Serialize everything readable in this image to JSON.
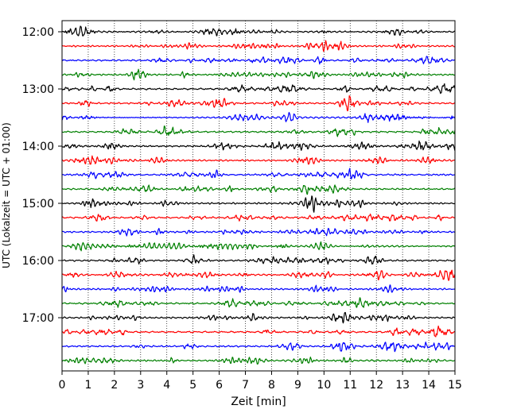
{
  "chart_data": {
    "type": "line",
    "title": "",
    "xlabel": "Zeit  [min]",
    "ylabel": "UTC (Lokalzeit = UTC + 01:00)",
    "xlim": [
      0,
      15
    ],
    "x_ticks": [
      0,
      1,
      2,
      3,
      4,
      5,
      6,
      7,
      8,
      9,
      10,
      11,
      12,
      13,
      14,
      15
    ],
    "x_tick_labels": [
      "0",
      "1",
      "2",
      "3",
      "4",
      "5",
      "6",
      "7",
      "8",
      "9",
      "10",
      "11",
      "12",
      "13",
      "14",
      "15"
    ],
    "y_tick_labels": [
      "12:00",
      "13:00",
      "14:00",
      "15:00",
      "16:00",
      "17:00"
    ],
    "grid": "vertical dotted",
    "trace_interval_minutes": 15,
    "trace_colors": [
      "#000000",
      "#ff0000",
      "#0000ff",
      "#008000"
    ],
    "series": [
      {
        "start": "12:00"
      },
      {
        "start": "12:15"
      },
      {
        "start": "12:30"
      },
      {
        "start": "12:45"
      },
      {
        "start": "13:00"
      },
      {
        "start": "13:15"
      },
      {
        "start": "13:30"
      },
      {
        "start": "13:45"
      },
      {
        "start": "14:00"
      },
      {
        "start": "14:15"
      },
      {
        "start": "14:30"
      },
      {
        "start": "14:45"
      },
      {
        "start": "15:00"
      },
      {
        "start": "15:15"
      },
      {
        "start": "15:30"
      },
      {
        "start": "15:45"
      },
      {
        "start": "16:00"
      },
      {
        "start": "16:15"
      },
      {
        "start": "16:30"
      },
      {
        "start": "16:45"
      },
      {
        "start": "17:00"
      },
      {
        "start": "17:15"
      },
      {
        "start": "17:30"
      },
      {
        "start": "17:45"
      }
    ]
  }
}
